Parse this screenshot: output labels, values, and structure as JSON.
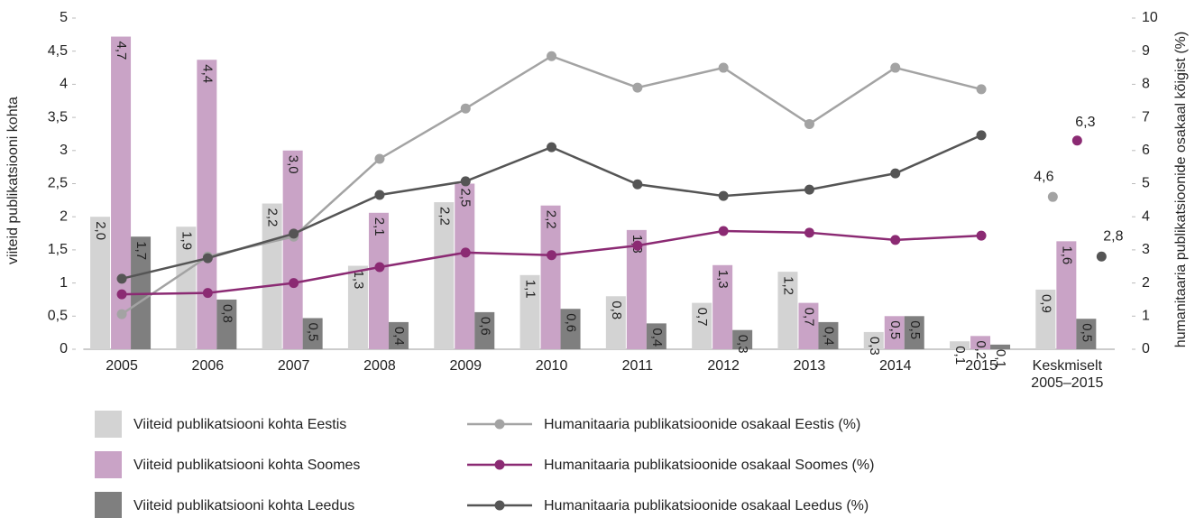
{
  "chart_data": {
    "type": "bar",
    "categories": [
      "2005",
      "2006",
      "2007",
      "2008",
      "2009",
      "2010",
      "2011",
      "2012",
      "2013",
      "2014",
      "2015",
      "Keskmiselt 2005–2015"
    ],
    "ylabel": "viiteid publikatsiooni kohta",
    "y2label": "humanitaaria publikatsioonide osakaal kõigist (%)",
    "ylim": [
      0,
      5
    ],
    "yticks": [
      0,
      {
        "value": 0.5,
        "label": "0,5"
      },
      1,
      {
        "value": 1.5,
        "label": "1,5"
      },
      2,
      {
        "value": 2.5,
        "label": "2,5"
      },
      3,
      {
        "value": 3.5,
        "label": "3,5"
      },
      4,
      {
        "value": 4.5,
        "label": "4,5"
      },
      5
    ],
    "y2lim": [
      0,
      10
    ],
    "y2ticks": [
      0,
      1,
      2,
      3,
      4,
      5,
      6,
      7,
      8,
      9,
      10
    ],
    "series": [
      {
        "name": "Viiteid publikatsiooni kohta Eestis",
        "type": "bar",
        "color": "#d3d3d3",
        "values": [
          2.0,
          1.85,
          2.2,
          1.26,
          2.22,
          1.12,
          0.8,
          0.7,
          1.17,
          0.26,
          0.12,
          0.9
        ],
        "value_labels": [
          "2,0",
          "1,9",
          "2,2",
          "1,3",
          "2,2",
          "1,1",
          "0,8",
          "0,7",
          "1,2",
          "0,3",
          "0,1",
          "0,9"
        ]
      },
      {
        "name": "Viiteid publikatsiooni kohta Soomes",
        "type": "bar",
        "color": "#c9a3c6",
        "values": [
          4.72,
          4.37,
          3.0,
          2.06,
          2.5,
          2.17,
          1.8,
          1.27,
          0.7,
          0.5,
          0.2,
          1.63
        ],
        "value_labels": [
          "4,7",
          "4,4",
          "3,0",
          "2,1",
          "2,5",
          "2,2",
          "1,8",
          "1,3",
          "0,7",
          "0,5",
          "0,2",
          "1,6"
        ]
      },
      {
        "name": "Viiteid publikatsiooni kohta Leedus",
        "type": "bar",
        "color": "#7f7f7f",
        "values": [
          1.7,
          0.75,
          0.47,
          0.41,
          0.56,
          0.61,
          0.39,
          0.29,
          0.41,
          0.5,
          0.07,
          0.46
        ],
        "value_labels": [
          "1,7",
          "0,8",
          "0,5",
          "0,4",
          "0,6",
          "0,6",
          "0,4",
          "0,3",
          "0,4",
          "0,5",
          "0,1",
          "0,5"
        ]
      },
      {
        "name": "Humanitaaria publikatsioonide osakaal Eestis (%)",
        "type": "line",
        "axis": "y2",
        "color": "#a3a3a3",
        "values": [
          1.06,
          2.8,
          3.4,
          5.75,
          7.27,
          8.85,
          7.9,
          8.5,
          6.8,
          8.5,
          7.85,
          null
        ],
        "average": 4.6,
        "average_label": "4,6"
      },
      {
        "name": "Humanitaaria publikatsioonide osakaal Soomes (%)",
        "type": "line",
        "axis": "y2",
        "color": "#8b2a73",
        "values": [
          1.66,
          1.7,
          2.0,
          2.48,
          2.92,
          2.84,
          3.13,
          3.57,
          3.52,
          3.3,
          3.43,
          null
        ],
        "average": 6.3,
        "average_label": "6,3"
      },
      {
        "name": "Humanitaaria publikatsioonide osakaal Leedus (%)",
        "type": "line",
        "axis": "y2",
        "color": "#555555",
        "values": [
          2.13,
          2.75,
          3.49,
          4.66,
          5.07,
          6.1,
          4.98,
          4.63,
          4.82,
          5.31,
          6.46,
          null
        ],
        "average": 2.8,
        "average_label": "2,8"
      }
    ]
  }
}
